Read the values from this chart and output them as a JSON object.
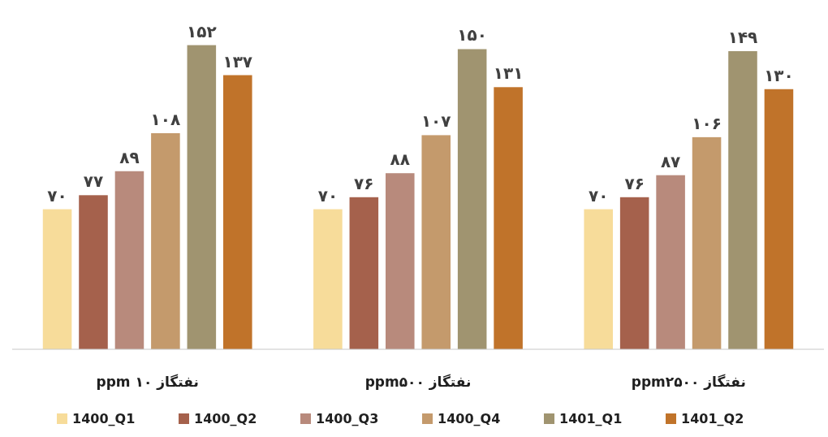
{
  "chart_data": {
    "type": "bar",
    "categories": [
      "نفتگاز ۱۰ ppm",
      "نفتگاز ppm۵۰۰",
      "نفتگاز ppm۲۵۰۰"
    ],
    "series": [
      {
        "name": "1400_Q1",
        "color": "#f7dc9a",
        "values": [
          70,
          70,
          70
        ],
        "value_labels": [
          "۷۰",
          "۷۰",
          "۷۰"
        ]
      },
      {
        "name": "1400_Q2",
        "color": "#a5614c",
        "values": [
          77,
          76,
          76
        ],
        "value_labels": [
          "۷۷",
          "۷۶",
          "۷۶"
        ]
      },
      {
        "name": "1400_Q3",
        "color": "#b88a7c",
        "values": [
          89,
          88,
          87
        ],
        "value_labels": [
          "۸۹",
          "۸۸",
          "۸۷"
        ]
      },
      {
        "name": "1400_Q4",
        "color": "#c49a6c",
        "values": [
          108,
          107,
          106
        ],
        "value_labels": [
          "۱۰۸",
          "۱۰۷",
          "۱۰۶"
        ]
      },
      {
        "name": "1401_Q1",
        "color": "#a09470",
        "values": [
          152,
          150,
          149
        ],
        "value_labels": [
          "۱۵۲",
          "۱۵۰",
          "۱۴۹"
        ]
      },
      {
        "name": "1401_Q2",
        "color": "#c0732a",
        "values": [
          137,
          131,
          130
        ],
        "value_labels": [
          "۱۳۷",
          "۱۳۱",
          "۱۳۰"
        ]
      }
    ],
    "legend": "bottom"
  }
}
